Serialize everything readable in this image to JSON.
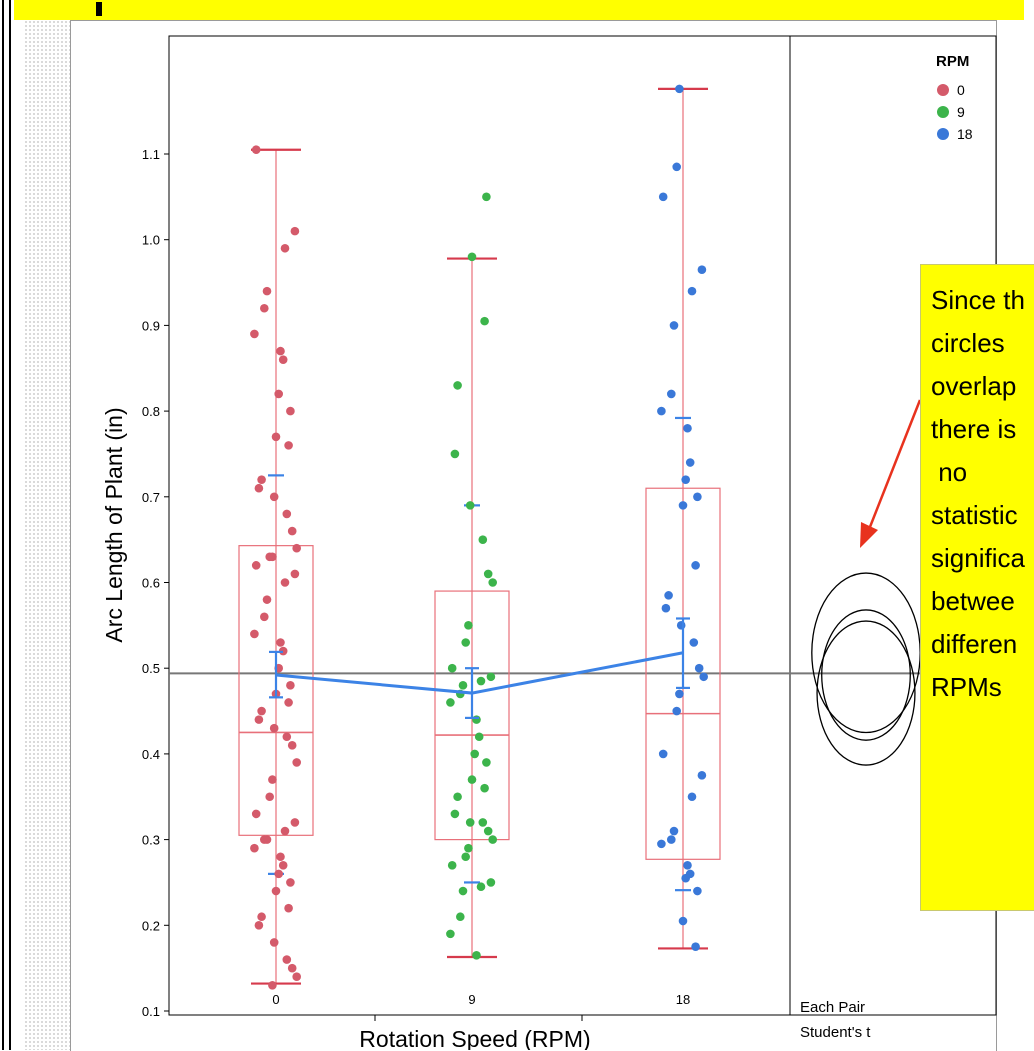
{
  "chart_data": {
    "type": "scatter",
    "ylabel": "Arc Length of Plant (in)",
    "xlabel": "Rotation Speed (RPM)",
    "categories": [
      "0",
      "9",
      "18"
    ],
    "y_ticks": [
      "0.1",
      "0.2",
      "0.3",
      "0.4",
      "0.5",
      "0.6",
      "0.7",
      "0.8",
      "0.9",
      "1.0",
      "1.1"
    ],
    "ylim": [
      0.09,
      1.18
    ],
    "grand_mean": 0.494,
    "means": [
      0.492,
      0.471,
      0.518
    ],
    "mean_ci": [
      [
        0.466,
        0.519
      ],
      [
        0.442,
        0.5
      ],
      [
        0.477,
        0.558
      ]
    ],
    "box_plots": [
      {
        "category": "0",
        "whisker_low": 0.132,
        "q1": 0.305,
        "median": 0.425,
        "q3": 0.643,
        "whisker_high": 1.105,
        "std_low": 0.26,
        "std_high": 0.725
      },
      {
        "category": "9",
        "whisker_low": 0.163,
        "q1": 0.3,
        "median": 0.422,
        "q3": 0.59,
        "whisker_high": 0.978,
        "std_low": 0.25,
        "std_high": 0.69
      },
      {
        "category": "18",
        "whisker_low": 0.173,
        "q1": 0.277,
        "median": 0.447,
        "q3": 0.71,
        "whisker_high": 1.176,
        "std_low": 0.241,
        "std_high": 0.792
      }
    ],
    "series": [
      {
        "name": "0",
        "color": "#d45a6a",
        "values": [
          1.105,
          1.01,
          0.99,
          0.94,
          0.92,
          0.89,
          0.87,
          0.86,
          0.82,
          0.8,
          0.77,
          0.76,
          0.72,
          0.71,
          0.7,
          0.68,
          0.66,
          0.64,
          0.63,
          0.63,
          0.62,
          0.61,
          0.6,
          0.58,
          0.56,
          0.54,
          0.53,
          0.52,
          0.5,
          0.48,
          0.47,
          0.46,
          0.45,
          0.44,
          0.43,
          0.42,
          0.41,
          0.39,
          0.37,
          0.35,
          0.33,
          0.32,
          0.31,
          0.3,
          0.3,
          0.29,
          0.28,
          0.27,
          0.26,
          0.25,
          0.24,
          0.22,
          0.21,
          0.2,
          0.18,
          0.16,
          0.15,
          0.14,
          0.13
        ]
      },
      {
        "name": "9",
        "color": "#3cb44b",
        "values": [
          1.05,
          0.98,
          0.905,
          0.83,
          0.75,
          0.69,
          0.65,
          0.61,
          0.6,
          0.55,
          0.53,
          0.5,
          0.49,
          0.485,
          0.48,
          0.47,
          0.46,
          0.44,
          0.42,
          0.4,
          0.39,
          0.37,
          0.36,
          0.35,
          0.33,
          0.32,
          0.32,
          0.31,
          0.3,
          0.29,
          0.28,
          0.27,
          0.25,
          0.245,
          0.24,
          0.21,
          0.19,
          0.165
        ]
      },
      {
        "name": "18",
        "color": "#3a78d8",
        "values": [
          1.176,
          1.085,
          1.05,
          0.965,
          0.94,
          0.9,
          0.82,
          0.8,
          0.78,
          0.74,
          0.72,
          0.7,
          0.69,
          0.62,
          0.585,
          0.57,
          0.55,
          0.53,
          0.5,
          0.49,
          0.47,
          0.45,
          0.4,
          0.375,
          0.35,
          0.31,
          0.3,
          0.295,
          0.27,
          0.26,
          0.255,
          0.24,
          0.205,
          0.175
        ]
      }
    ],
    "legend": {
      "title": "RPM",
      "entries": [
        "0",
        "9",
        "18"
      ],
      "position": "top-right"
    },
    "comparison_panel": {
      "label_line1": "Each Pair",
      "label_line2": "Student's t"
    },
    "comparison_circles": [
      {
        "center": 0.492,
        "radius": 0.076
      },
      {
        "center": 0.471,
        "radius": 0.084
      },
      {
        "center": 0.518,
        "radius": 0.093
      }
    ]
  },
  "annotation": {
    "text": "Since th\ncircles\noverlap\nthere is\n no\nstatistic\nsignifica\nbetwee\ndifferen\nRPMs"
  }
}
